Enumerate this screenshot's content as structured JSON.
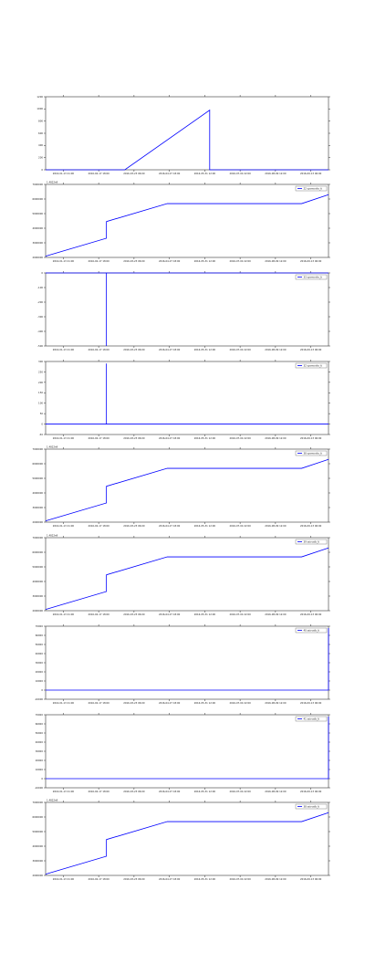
{
  "chart_data": [
    {
      "type": "line",
      "has_legend": false,
      "offset_text": "",
      "x_tick_labels": [
        "2016-01-13 21:00",
        "2016-02-17 18:00",
        "2016-03-23 06:00",
        "2016-04-27 18:00",
        "2016-05-31 12:00",
        "2016-07-04 22:00",
        "2016-08-09 12:00",
        "2016-09-13 06:00"
      ],
      "y_tick_labels": [
        "1200",
        "1000",
        "800",
        "600",
        "400",
        "200",
        "0"
      ],
      "ylim": [
        0,
        1200
      ],
      "series": [
        {
          "name": "",
          "color": "#0000ff",
          "points": [
            [
              0,
              0
            ],
            [
              0.28,
              0
            ],
            [
              0.58,
              980
            ],
            [
              0.58,
              0
            ],
            [
              1.0,
              0
            ]
          ]
        }
      ]
    },
    {
      "type": "line",
      "has_legend": true,
      "offset_text": "1.4822e9",
      "x_tick_labels": [
        "2016-01-13 21:00",
        "2016-02-17 18:00",
        "2016-03-23 06:00",
        "2016-04-27 18:00",
        "2016-05-31 12:00",
        "2016-07-04 22:00",
        "2016-08-09 12:00",
        "2016-09-13 06:00"
      ],
      "y_tick_labels": [
        "7000000",
        "6000000",
        "5000000",
        "4000000",
        "3000000",
        "2000000"
      ],
      "ylim": [
        1500000,
        7200000
      ],
      "series": [
        {
          "name": "22 sysmonito_ti",
          "color": "#0000ff",
          "points": [
            [
              0,
              1600000
            ],
            [
              0.215,
              3000000
            ],
            [
              0.215,
              4300000
            ],
            [
              0.43,
              5700000
            ],
            [
              0.905,
              5700000
            ],
            [
              1.0,
              6400000
            ]
          ]
        }
      ]
    },
    {
      "type": "line",
      "has_legend": true,
      "offset_text": "",
      "x_tick_labels": [
        "2016-01-13 21:00",
        "2016-02-17 18:00",
        "2016-03-23 06:00",
        "2016-04-27 18:00",
        "2016-05-31 12:00",
        "2016-07-04 22:00",
        "2016-08-09 12:00",
        "2016-09-13 06:00"
      ],
      "y_tick_labels": [
        "0",
        "-100",
        "-200",
        "-300",
        "-400",
        "-500"
      ],
      "ylim": [
        -500,
        0
      ],
      "series": [
        {
          "name": "33 sysmonito_ti",
          "color": "#0000ff",
          "points": [
            [
              0,
              0
            ],
            [
              0.215,
              0
            ],
            [
              0.215,
              -500
            ],
            [
              0.215,
              0
            ],
            [
              1.0,
              0
            ]
          ]
        }
      ]
    },
    {
      "type": "line",
      "has_legend": true,
      "offset_text": "",
      "x_tick_labels": [
        "2016-01-13 21:00",
        "2016-02-17 18:00",
        "2016-03-23 06:00",
        "2016-04-27 18:00",
        "2016-05-31 12:00",
        "2016-07-04 22:00",
        "2016-08-09 12:00",
        "2016-09-13 06:00"
      ],
      "y_tick_labels": [
        "300",
        "250",
        "200",
        "150",
        "100",
        "50",
        "0",
        "-50"
      ],
      "ylim": [
        -50,
        300
      ],
      "series": [
        {
          "name": "32 sysmonito_ti",
          "color": "#0000ff",
          "points": [
            [
              0,
              0
            ],
            [
              0.215,
              0
            ],
            [
              0.215,
              290
            ],
            [
              0.215,
              0
            ],
            [
              1.0,
              0
            ]
          ]
        }
      ]
    },
    {
      "type": "line",
      "has_legend": true,
      "offset_text": "1.4822e9",
      "x_tick_labels": [
        "2016-01-13 21:00",
        "2016-02-17 18:00",
        "2016-03-23 06:00",
        "2016-04-27 18:00",
        "2016-05-31 12:00",
        "2016-07-04 22:00",
        "2016-08-09 12:00",
        "2016-09-13 06:00"
      ],
      "y_tick_labels": [
        "7000000",
        "6000000",
        "5000000",
        "4000000",
        "3000000",
        "2000000"
      ],
      "ylim": [
        1500000,
        7200000
      ],
      "series": [
        {
          "name": "38 sysmonito_ti",
          "color": "#0000ff",
          "points": [
            [
              0,
              1600000
            ],
            [
              0.215,
              3000000
            ],
            [
              0.215,
              4300000
            ],
            [
              0.43,
              5700000
            ],
            [
              0.905,
              5700000
            ],
            [
              1.0,
              6400000
            ]
          ]
        }
      ]
    },
    {
      "type": "line",
      "has_legend": true,
      "offset_text": "1.4822e9",
      "x_tick_labels": [
        "2016-01-13 21:00",
        "2016-02-17 18:00",
        "2016-03-23 06:00",
        "2016-04-27 18:00",
        "2016-05-31 12:00",
        "2016-07-04 22:00",
        "2016-08-09 12:00",
        "2016-09-13 06:00"
      ],
      "y_tick_labels": [
        "7000000",
        "6000000",
        "5000000",
        "4000000",
        "3000000",
        "2000000"
      ],
      "ylim": [
        1500000,
        7200000
      ],
      "series": [
        {
          "name": "39 ssicvalb_ti",
          "color": "#0000ff",
          "points": [
            [
              0,
              1600000
            ],
            [
              0.215,
              3000000
            ],
            [
              0.215,
              4300000
            ],
            [
              0.43,
              5700000
            ],
            [
              0.905,
              5700000
            ],
            [
              1.0,
              6400000
            ]
          ]
        }
      ]
    },
    {
      "type": "line",
      "has_legend": true,
      "offset_text": "",
      "x_tick_labels": [
        "2016-01-13 21:00",
        "2016-02-17 18:00",
        "2016-03-23 06:00",
        "2016-04-27 18:00",
        "2016-05-31 12:00",
        "2016-07-04 22:00",
        "2016-08-09 12:00",
        "2016-09-13 06:00"
      ],
      "y_tick_labels": [
        "70000",
        "60000",
        "50000",
        "40000",
        "30000",
        "20000",
        "10000",
        "0",
        "-10000"
      ],
      "ylim": [
        -10000,
        70000
      ],
      "series": [
        {
          "name": "40 ssicvalb_ti",
          "color": "#0000ff",
          "points": [
            [
              0,
              0
            ],
            [
              1.0,
              0
            ],
            [
              1.0,
              68000
            ]
          ]
        }
      ]
    },
    {
      "type": "line",
      "has_legend": true,
      "offset_text": "",
      "x_tick_labels": [
        "2016-01-13 21:00",
        "2016-02-17 18:00",
        "2016-03-23 06:00",
        "2016-04-27 18:00",
        "2016-05-31 12:00",
        "2016-07-04 22:00",
        "2016-08-09 12:00",
        "2016-09-13 06:00"
      ],
      "y_tick_labels": [
        "70000",
        "60000",
        "50000",
        "40000",
        "30000",
        "20000",
        "10000",
        "0",
        "-10000"
      ],
      "ylim": [
        -10000,
        70000
      ],
      "series": [
        {
          "name": "41 ssicvalb_ti",
          "color": "#0000ff",
          "points": [
            [
              0,
              0
            ],
            [
              1.0,
              0
            ],
            [
              1.0,
              68000
            ]
          ]
        }
      ]
    },
    {
      "type": "line",
      "has_legend": true,
      "offset_text": "1.4822e9",
      "x_tick_labels": [
        "2016-01-13 21:00",
        "2016-02-17 18:00",
        "2016-03-23 06:00",
        "2016-04-27 18:00",
        "2016-05-31 12:00",
        "2016-07-04 22:00",
        "2016-08-09 12:00",
        "2016-09-13 06:00"
      ],
      "y_tick_labels": [
        "7000000",
        "6000000",
        "5000000",
        "4000000",
        "3000000",
        "2000000"
      ],
      "ylim": [
        1500000,
        7200000
      ],
      "series": [
        {
          "name": "38 ssicvalb_ti",
          "color": "#0000ff",
          "points": [
            [
              0,
              1600000
            ],
            [
              0.215,
              3000000
            ],
            [
              0.215,
              4300000
            ],
            [
              0.43,
              5700000
            ],
            [
              0.905,
              5700000
            ],
            [
              1.0,
              6400000
            ]
          ]
        }
      ]
    }
  ]
}
